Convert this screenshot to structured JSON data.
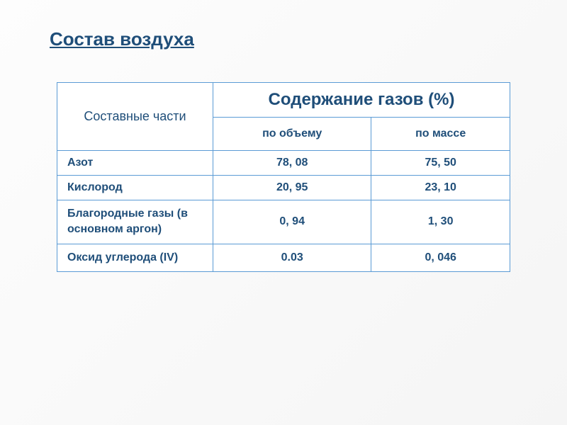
{
  "title": "Состав воздуха",
  "table": {
    "header_left": "Составные части",
    "header_main": "Содержание газов (%)",
    "sub_headers": [
      "по объему",
      "по массе"
    ],
    "rows": [
      {
        "label": "Азот",
        "volume": "78, 08",
        "mass": "75, 50"
      },
      {
        "label": "Кислород",
        "volume": "20, 95",
        "mass": "23, 10"
      },
      {
        "label": "Благородные газы (в основном аргон)",
        "volume": "0, 94",
        "mass": "1, 30"
      },
      {
        "label": "Оксид углерода (IV)",
        "volume": "0.03",
        "mass": "0, 046"
      }
    ],
    "border_color": "#5b9bd5",
    "text_color": "#1f4e79",
    "background_color": "#ffffff",
    "title_fontsize": 26,
    "header_main_fontsize": 24,
    "header_left_fontsize": 18,
    "sub_header_fontsize": 16,
    "cell_fontsize": 16,
    "columns_width": [
      220,
      210,
      210
    ]
  },
  "page_background": "#fdfdfd"
}
